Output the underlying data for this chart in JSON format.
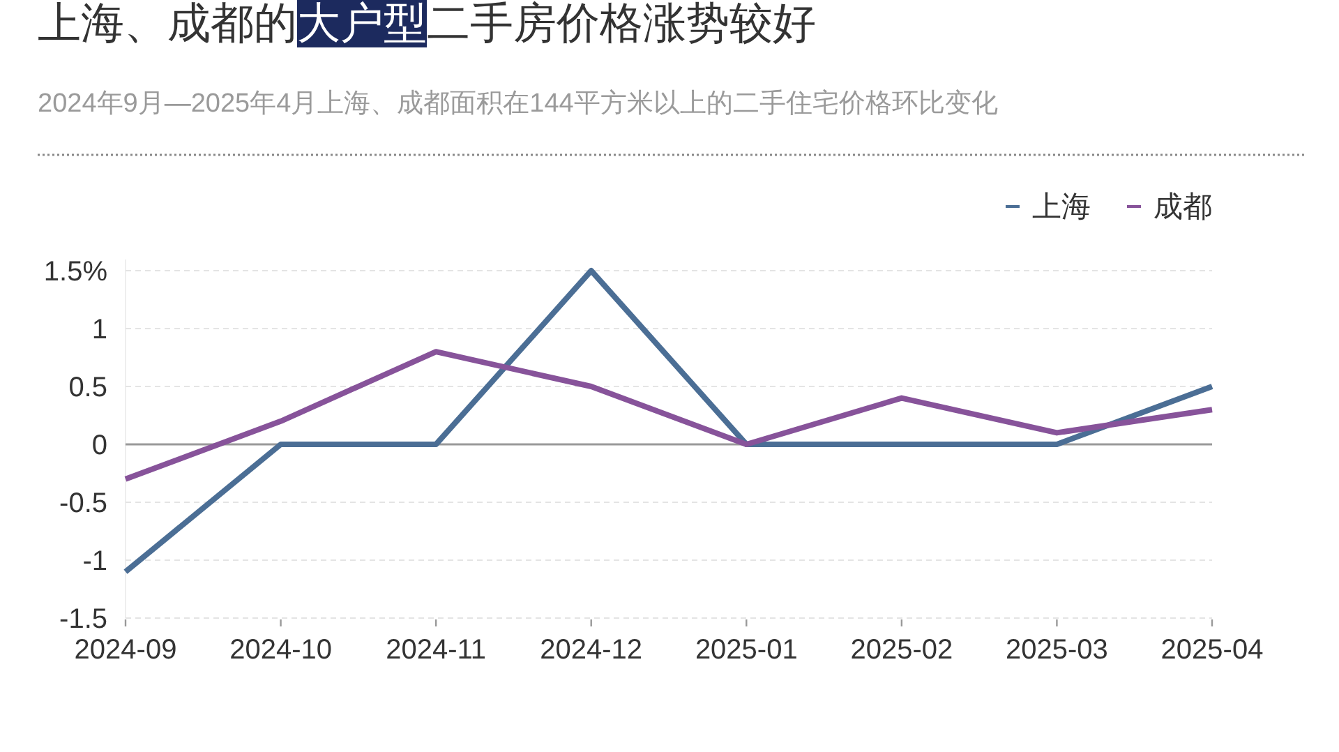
{
  "chart_data": {
    "type": "line",
    "title": "上海、成都的**大户型**二手房价格涨势较好",
    "subtitle": "2024年9月—2025年4月上海、成都面积在144平方米以上的二手住宅价格环比变化",
    "categories": [
      "2024-09",
      "2024-10",
      "2024-11",
      "2024-12",
      "2025-01",
      "2025-02",
      "2025-03",
      "2025-04"
    ],
    "series": [
      {
        "name": "上海",
        "color": "#4b6e95",
        "values": [
          -1.1,
          0,
          0,
          1.5,
          0,
          0,
          0,
          0.5
        ]
      },
      {
        "name": "成都",
        "color": "#87539a",
        "values": [
          -0.3,
          0.2,
          0.8,
          0.5,
          0,
          0.4,
          0.1,
          0.3
        ]
      }
    ],
    "ylim": [
      -1.5,
      1.5
    ],
    "yticks": [
      {
        "value": 1.5,
        "label": "1.5%"
      },
      1,
      0.5,
      0,
      -0.5,
      -1,
      -1.5
    ],
    "grid": "y",
    "legend": "top right"
  }
}
